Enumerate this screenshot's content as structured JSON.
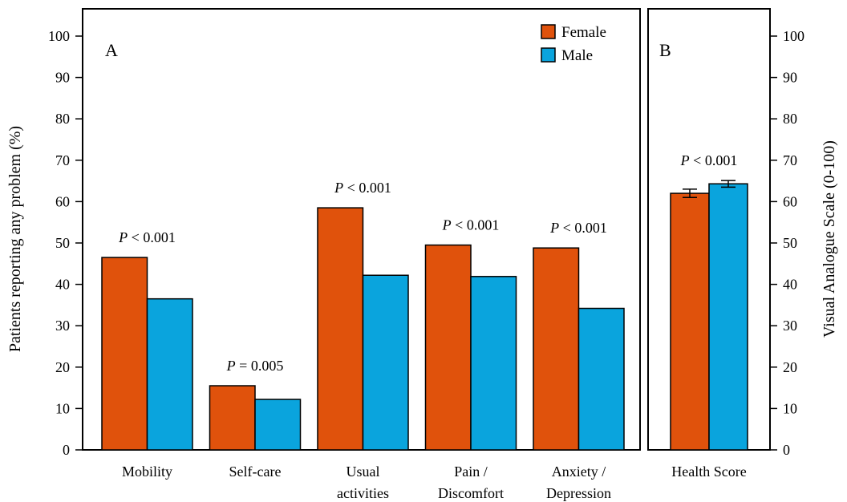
{
  "colors": {
    "female": "#e0520c",
    "male": "#0aa4dd"
  },
  "chart_data": [
    {
      "type": "bar",
      "panel_label": "A",
      "ylabel": "Patients reporting any problem (%)",
      "ylim": [
        0,
        100
      ],
      "yticks": [
        0,
        10,
        20,
        30,
        40,
        50,
        60,
        70,
        80,
        90,
        100
      ],
      "grid": false,
      "legend_position": "top-right",
      "categories": [
        [
          "Mobility"
        ],
        [
          "Self-care"
        ],
        [
          "Usual",
          "activities"
        ],
        [
          "Pain /",
          "Discomfort"
        ],
        [
          "Anxiety /",
          "Depression"
        ]
      ],
      "series": [
        {
          "name": "Female",
          "values": [
            46.5,
            15.5,
            58.5,
            49.5,
            48.8
          ]
        },
        {
          "name": "Male",
          "values": [
            36.5,
            12.2,
            42.2,
            41.9,
            34.2
          ]
        }
      ],
      "annotations": [
        {
          "p": "P",
          "text": " < 0.001"
        },
        {
          "p": "P",
          "text": " = 0.005"
        },
        {
          "p": "P",
          "text": " < 0.001"
        },
        {
          "p": "P",
          "text": " < 0.001"
        },
        {
          "p": "P",
          "text": " < 0.001"
        }
      ]
    },
    {
      "type": "bar",
      "panel_label": "B",
      "ylabel": "Visual Analogue Scale (0-100)",
      "ylim": [
        0,
        100
      ],
      "yticks": [
        0,
        10,
        20,
        30,
        40,
        50,
        60,
        70,
        80,
        90,
        100
      ],
      "grid": false,
      "categories": [
        [
          "Health Score"
        ]
      ],
      "series": [
        {
          "name": "Female",
          "values": [
            62.0
          ],
          "error": [
            1.0
          ]
        },
        {
          "name": "Male",
          "values": [
            64.3
          ],
          "error": [
            0.8
          ]
        }
      ],
      "annotations": [
        {
          "p": "P",
          "text": " < 0.001"
        }
      ]
    }
  ]
}
